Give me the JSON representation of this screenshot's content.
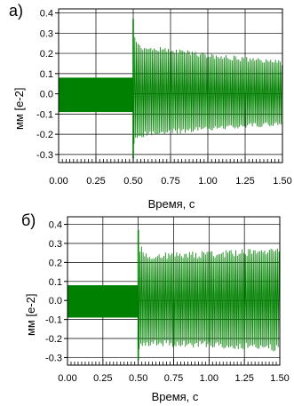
{
  "chart_data": [
    {
      "type": "line",
      "panel_label": "а)",
      "xlabel": "Время, с",
      "ylabel": "мм [е-2]",
      "xlim": [
        0.0,
        1.5
      ],
      "ylim": [
        -0.34,
        0.42
      ],
      "x_ticks": [
        "0.00",
        "0.25",
        "0.50",
        "0.75",
        "1.00",
        "1.25",
        "1.50"
      ],
      "y_ticks": [
        "0.4",
        "0.3",
        "0.2",
        "0.1",
        "0.0",
        "-0.1",
        "-0.2",
        "-0.3"
      ],
      "grid": true,
      "line_color": "#008000",
      "series": [
        {
          "x": [
            0.0,
            0.25,
            0.499,
            0.5,
            0.51,
            0.55,
            0.6,
            0.75,
            1.0,
            1.25,
            1.5
          ],
          "upper": [
            0.08,
            0.08,
            0.08,
            0.37,
            0.3,
            0.25,
            0.24,
            0.225,
            0.205,
            0.185,
            0.165
          ],
          "lower": [
            -0.09,
            -0.09,
            -0.09,
            -0.32,
            -0.25,
            -0.22,
            -0.21,
            -0.2,
            -0.185,
            -0.17,
            -0.16
          ]
        }
      ]
    },
    {
      "type": "line",
      "panel_label": "б)",
      "xlabel": "Время, с",
      "ylabel": "мм [е-2]",
      "xlim": [
        0.0,
        1.5
      ],
      "ylim": [
        -0.34,
        0.44
      ],
      "x_ticks": [
        "0.00",
        "0.25",
        "0.50",
        "0.75",
        "1.00",
        "1.25",
        "1.50"
      ],
      "y_ticks": [
        "0.4",
        "0.3",
        "0.2",
        "0.1",
        "0.0",
        "-0.1",
        "-0.2",
        "-0.3"
      ],
      "grid": true,
      "line_color": "#008000",
      "series": [
        {
          "x": [
            0.0,
            0.25,
            0.499,
            0.5,
            0.51,
            0.55,
            0.6,
            0.75,
            1.0,
            1.25,
            1.5
          ],
          "upper": [
            0.08,
            0.08,
            0.08,
            0.37,
            0.3,
            0.26,
            0.25,
            0.255,
            0.26,
            0.27,
            0.285
          ],
          "lower": [
            -0.09,
            -0.09,
            -0.09,
            -0.31,
            -0.26,
            -0.24,
            -0.24,
            -0.245,
            -0.25,
            -0.26,
            -0.27
          ]
        }
      ]
    }
  ]
}
